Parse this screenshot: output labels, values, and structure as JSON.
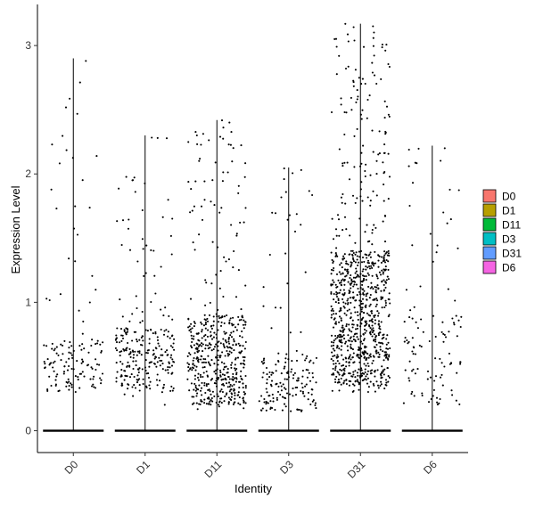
{
  "chart_data": {
    "type": "violin",
    "xlabel": "Identity",
    "ylabel": "Expression Level",
    "categories": [
      "D0",
      "D1",
      "D11",
      "D3",
      "D31",
      "D6"
    ],
    "ylim": [
      -0.17,
      3.32
    ],
    "yticks": [
      0,
      1,
      2,
      3
    ],
    "ytick_labels": [
      "0",
      "1",
      "2",
      "3"
    ],
    "grid": false,
    "legend_position": "right",
    "legend": [
      {
        "label": "D0",
        "color": "#F8766D"
      },
      {
        "label": "D1",
        "color": "#B79F00"
      },
      {
        "label": "D11",
        "color": "#00BA38"
      },
      {
        "label": "D3",
        "color": "#00BFC4"
      },
      {
        "label": "D31",
        "color": "#619CFF"
      },
      {
        "label": "D6",
        "color": "#F564E3"
      }
    ],
    "series": [
      {
        "category": "D0",
        "violin_max": 2.9,
        "nonzero_points": 140,
        "nonzero_range": [
          0.3,
          2.9
        ],
        "dense_band": [
          0.3,
          0.7
        ]
      },
      {
        "category": "D1",
        "violin_max": 2.3,
        "nonzero_points": 260,
        "nonzero_range": [
          0.2,
          2.3
        ],
        "dense_band": [
          0.3,
          0.8
        ]
      },
      {
        "category": "D11",
        "violin_max": 2.42,
        "nonzero_points": 520,
        "nonzero_range": [
          0.15,
          2.42
        ],
        "dense_band": [
          0.2,
          0.9
        ]
      },
      {
        "category": "D3",
        "violin_max": 2.05,
        "nonzero_points": 170,
        "nonzero_range": [
          0.15,
          2.05
        ],
        "dense_band": [
          0.15,
          0.6
        ]
      },
      {
        "category": "D31",
        "violin_max": 3.17,
        "nonzero_points": 900,
        "nonzero_range": [
          0.3,
          3.17
        ],
        "dense_band": [
          0.35,
          1.4
        ]
      },
      {
        "category": "D6",
        "violin_max": 2.22,
        "nonzero_points": 110,
        "nonzero_range": [
          0.2,
          2.22
        ],
        "dense_band": [
          0.2,
          0.9
        ]
      }
    ]
  }
}
